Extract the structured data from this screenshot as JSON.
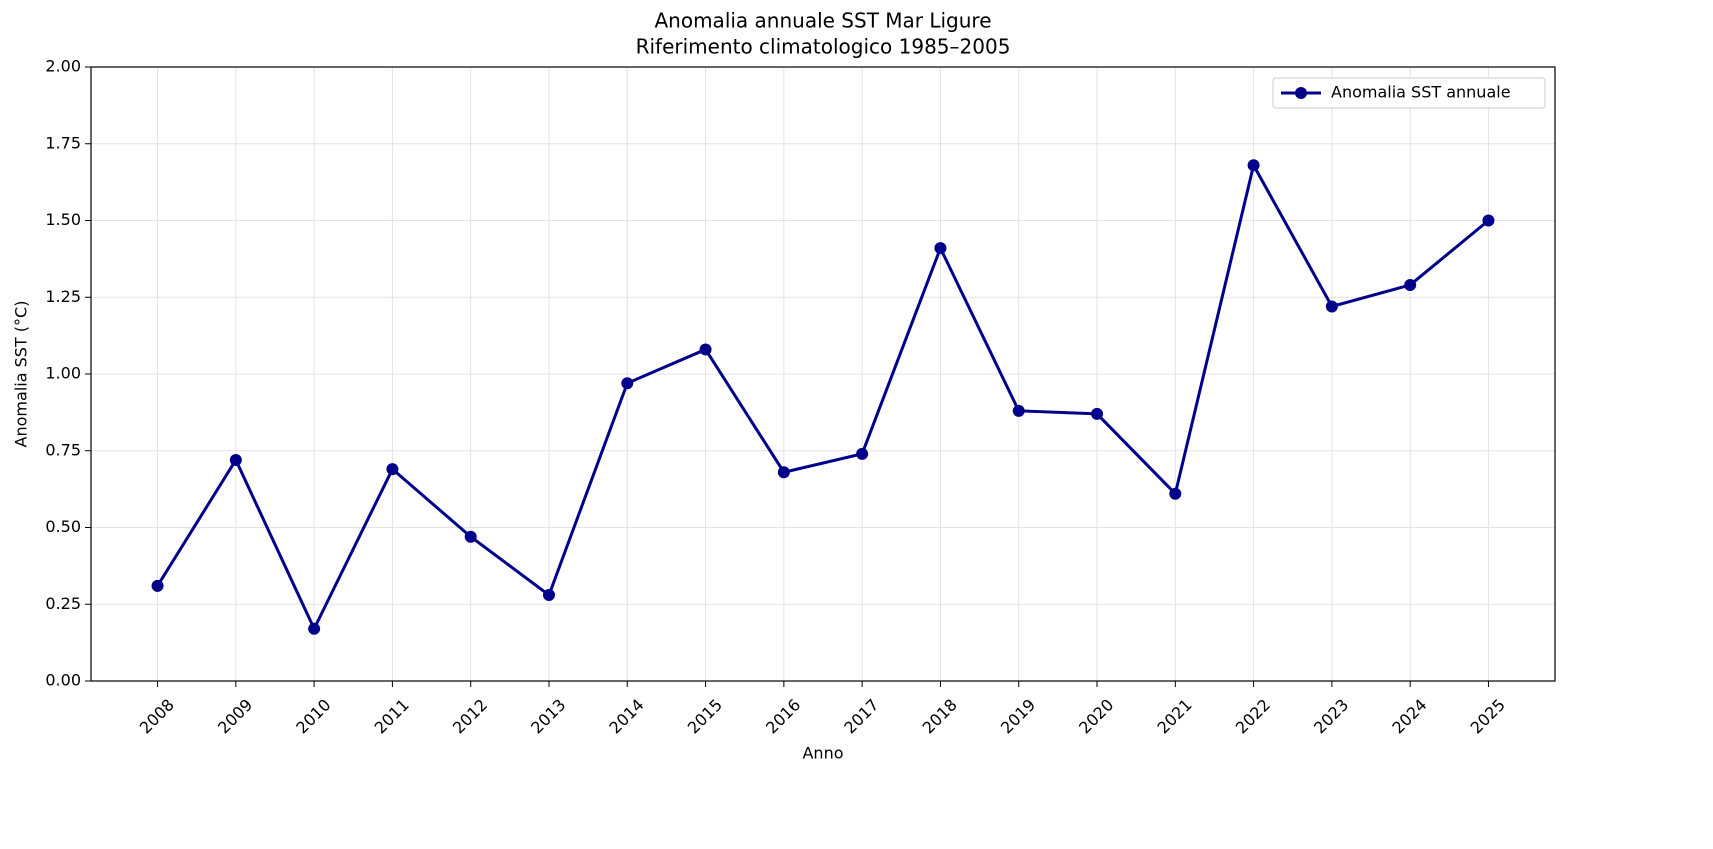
{
  "chart_data": {
    "type": "line",
    "title": "Anomalia annuale SST Mar Ligure",
    "subtitle": "Riferimento climatologico 1985–2005",
    "xlabel": "Anno",
    "ylabel": "Anomalia SST (°C)",
    "x": [
      2008,
      2009,
      2010,
      2011,
      2012,
      2013,
      2014,
      2015,
      2016,
      2017,
      2018,
      2019,
      2020,
      2021,
      2022,
      2023,
      2024,
      2025
    ],
    "series": [
      {
        "name": "Anomalia SST annuale",
        "color": "#00008b",
        "values": [
          0.31,
          0.72,
          0.17,
          0.69,
          0.47,
          0.28,
          0.97,
          1.08,
          0.68,
          0.74,
          1.41,
          0.88,
          0.87,
          0.61,
          1.68,
          1.22,
          1.29,
          1.5
        ]
      }
    ],
    "xlim": [
      2007.15,
      2025.85
    ],
    "xticks": [
      2008,
      2009,
      2010,
      2011,
      2012,
      2013,
      2014,
      2015,
      2016,
      2017,
      2018,
      2019,
      2020,
      2021,
      2022,
      2023,
      2024,
      2025
    ],
    "ylim": [
      0,
      2
    ],
    "yticks": [
      {
        "value": 0,
        "label": "0.00"
      },
      {
        "value": 0.25,
        "label": "0.25"
      },
      {
        "value": 0.5,
        "label": "0.50"
      },
      {
        "value": 0.75,
        "label": "0.75"
      },
      {
        "value": 1,
        "label": "1.00"
      },
      {
        "value": 1.25,
        "label": "1.25"
      },
      {
        "value": 1.5,
        "label": "1.50"
      },
      {
        "value": 1.75,
        "label": "1.75"
      },
      {
        "value": 2,
        "label": "2.00"
      }
    ],
    "grid": true,
    "legend": "upper right"
  }
}
